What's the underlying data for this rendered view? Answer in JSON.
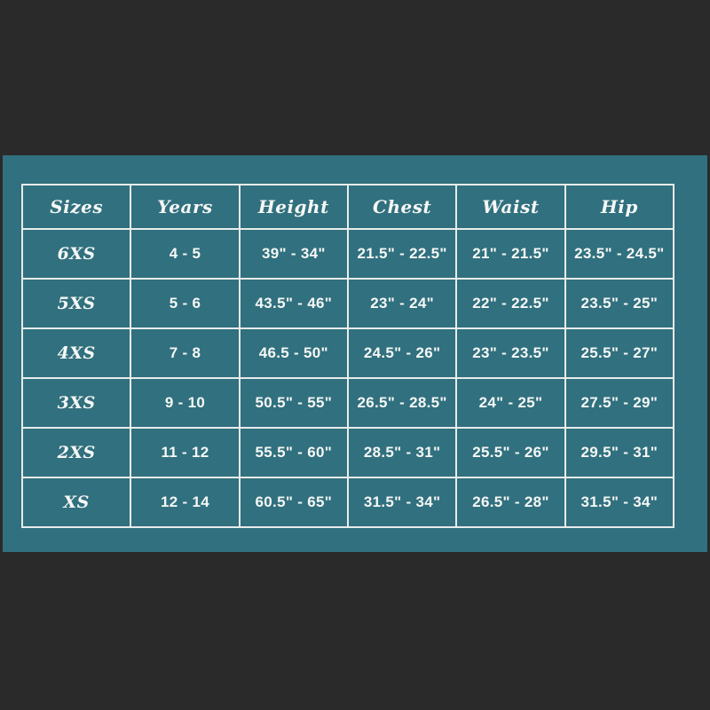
{
  "colors": {
    "page_background": "#2a2a2a",
    "panel_background": "#31707e",
    "grid_line": "#e8eceb",
    "text": "#f5f7f6"
  },
  "chart_data": {
    "type": "table",
    "title": "",
    "columns": [
      "Sizes",
      "Years",
      "Height",
      "Chest",
      "Waist",
      "Hip"
    ],
    "rows": [
      [
        "6XS",
        "4 - 5",
        "39\" - 34\"",
        "21.5\" - 22.5\"",
        "21\" - 21.5\"",
        "23.5\" - 24.5\""
      ],
      [
        "5XS",
        "5 - 6",
        "43.5\" - 46\"",
        "23\" - 24\"",
        "22\" - 22.5\"",
        "23.5\" - 25\""
      ],
      [
        "4XS",
        "7 - 8",
        "46.5 - 50\"",
        "24.5\" - 26\"",
        "23\" - 23.5\"",
        "25.5\" - 27\""
      ],
      [
        "3XS",
        "9 - 10",
        "50.5\" - 55\"",
        "26.5\" - 28.5\"",
        "24\" - 25\"",
        "27.5\" - 29\""
      ],
      [
        "2XS",
        "11 - 12",
        "55.5\" - 60\"",
        "28.5\" - 31\"",
        "25.5\" - 26\"",
        "29.5\" - 31\""
      ],
      [
        "XS",
        "12 - 14",
        "60.5\" - 65\"",
        "31.5\" - 34\"",
        "26.5\" - 28\"",
        "31.5\" - 34\""
      ]
    ],
    "layout": {
      "grid": true,
      "header_position": "top",
      "columns_equal_width": true
    }
  }
}
